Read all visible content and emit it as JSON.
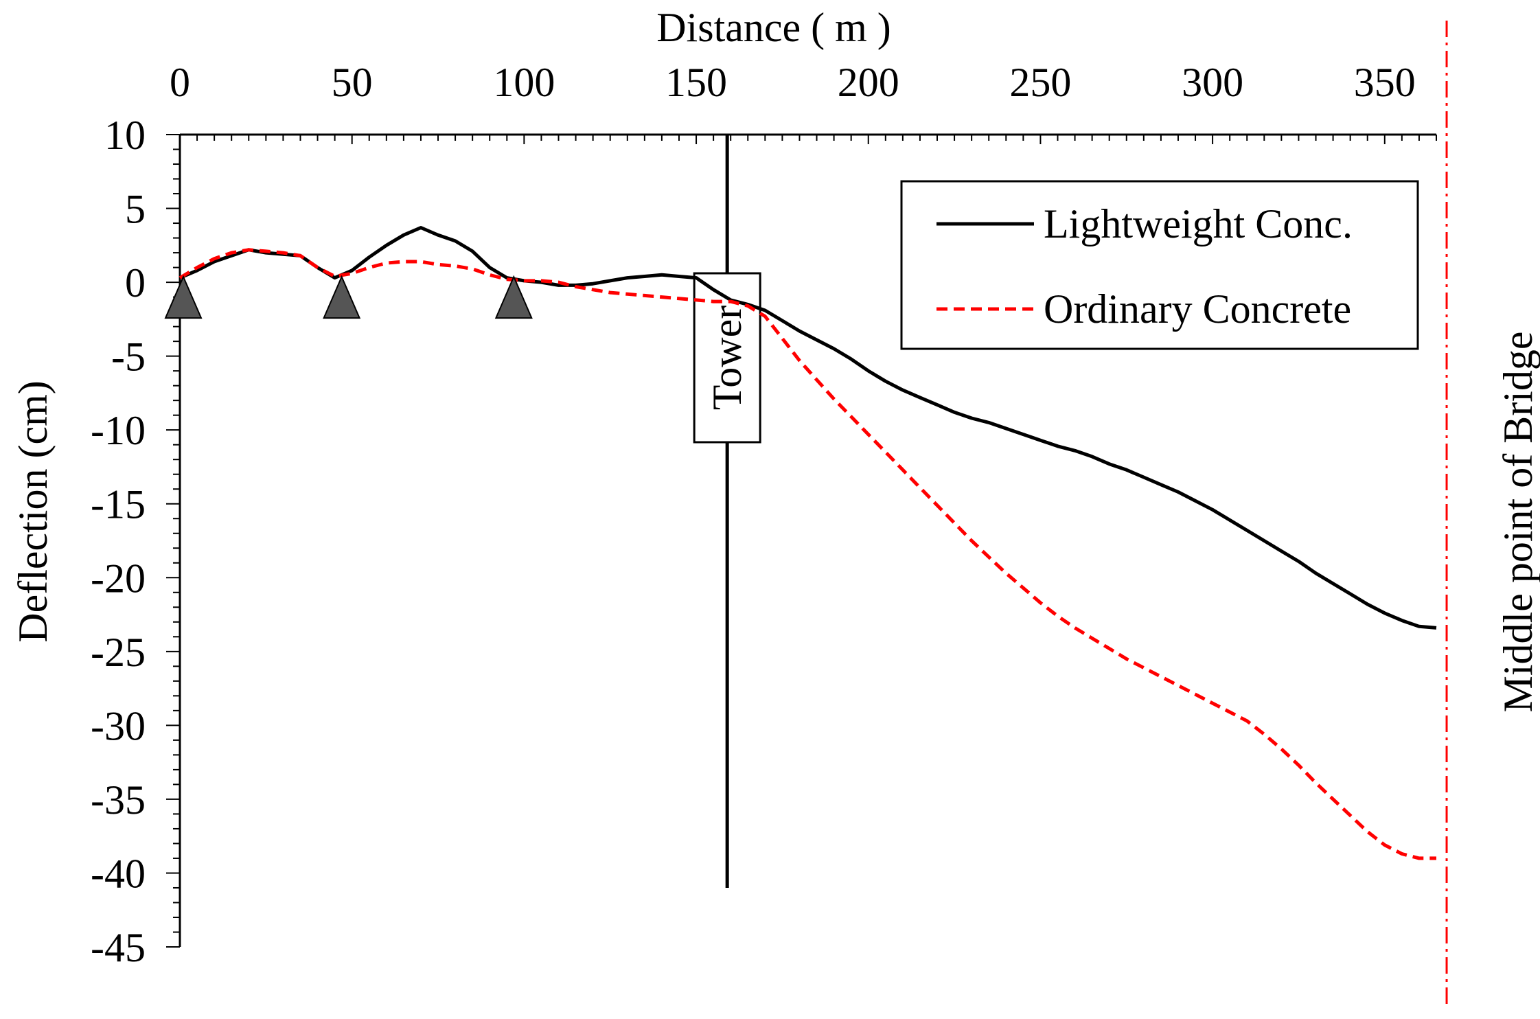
{
  "chart_data": {
    "type": "line",
    "title": "",
    "xlabel": "Distance ( m )",
    "ylabel": "Deflection (cm)",
    "xlim": [
      0,
      365
    ],
    "ylim": [
      -45,
      10
    ],
    "x_ticks": [
      0,
      50,
      100,
      150,
      200,
      250,
      300,
      350
    ],
    "y_ticks": [
      10,
      5,
      0,
      -5,
      -10,
      -15,
      -20,
      -25,
      -30,
      -35,
      -40,
      -45
    ],
    "legend": {
      "position": "top-right"
    },
    "annotations": {
      "tower_label": "Tower",
      "tower_x": 159,
      "tower_bottom_y": -41,
      "midpoint_label": "Middle point of Bridge",
      "midpoint_x": 368,
      "supports_x": [
        1,
        47,
        97
      ]
    },
    "series": [
      {
        "name": "Lightweight Conc.",
        "color": "#000000",
        "style": "solid",
        "x": [
          0,
          5,
          10,
          15,
          20,
          25,
          30,
          35,
          40,
          45,
          50,
          55,
          60,
          65,
          70,
          75,
          80,
          85,
          90,
          95,
          100,
          105,
          110,
          115,
          120,
          125,
          130,
          135,
          140,
          145,
          150,
          155,
          160,
          165,
          170,
          175,
          180,
          185,
          190,
          195,
          200,
          205,
          210,
          215,
          220,
          225,
          230,
          235,
          240,
          245,
          250,
          255,
          260,
          265,
          270,
          275,
          280,
          285,
          290,
          295,
          300,
          305,
          310,
          315,
          320,
          325,
          330,
          335,
          340,
          345,
          350,
          355,
          360,
          365
        ],
        "values": [
          0.3,
          0.8,
          1.4,
          1.8,
          2.2,
          2.0,
          1.9,
          1.8,
          1.0,
          0.3,
          0.8,
          1.7,
          2.5,
          3.2,
          3.7,
          3.2,
          2.8,
          2.1,
          1.0,
          0.3,
          0.1,
          0.0,
          -0.2,
          -0.2,
          -0.1,
          0.1,
          0.3,
          0.4,
          0.5,
          0.4,
          0.3,
          -0.5,
          -1.2,
          -1.5,
          -1.9,
          -2.6,
          -3.3,
          -3.9,
          -4.5,
          -5.2,
          -6.0,
          -6.7,
          -7.3,
          -7.8,
          -8.3,
          -8.8,
          -9.2,
          -9.5,
          -9.9,
          -10.3,
          -10.7,
          -11.1,
          -11.4,
          -11.8,
          -12.3,
          -12.7,
          -13.2,
          -13.7,
          -14.2,
          -14.8,
          -15.4,
          -16.1,
          -16.8,
          -17.5,
          -18.2,
          -18.9,
          -19.7,
          -20.4,
          -21.1,
          -21.8,
          -22.4,
          -22.9,
          -23.3,
          -23.4
        ]
      },
      {
        "name": "Ordinary Concrete",
        "color": "#ff0000",
        "style": "dashed",
        "x": [
          0,
          5,
          10,
          15,
          20,
          25,
          30,
          35,
          40,
          45,
          50,
          55,
          60,
          65,
          70,
          75,
          80,
          85,
          90,
          95,
          100,
          105,
          110,
          115,
          120,
          125,
          130,
          135,
          140,
          145,
          150,
          155,
          160,
          165,
          170,
          175,
          180,
          185,
          190,
          195,
          200,
          205,
          210,
          215,
          220,
          225,
          230,
          235,
          240,
          245,
          250,
          255,
          260,
          265,
          270,
          275,
          280,
          285,
          290,
          295,
          300,
          305,
          310,
          315,
          320,
          325,
          330,
          335,
          340,
          345,
          350,
          355,
          360,
          365
        ],
        "values": [
          0.3,
          1.0,
          1.6,
          2.0,
          2.2,
          2.1,
          2.0,
          1.8,
          1.0,
          0.4,
          0.6,
          1.0,
          1.3,
          1.4,
          1.4,
          1.2,
          1.1,
          0.9,
          0.5,
          0.2,
          0.1,
          0.1,
          0.0,
          -0.3,
          -0.5,
          -0.7,
          -0.8,
          -0.9,
          -1.0,
          -1.1,
          -1.2,
          -1.3,
          -1.3,
          -1.6,
          -2.3,
          -3.8,
          -5.3,
          -6.6,
          -7.9,
          -9.1,
          -10.3,
          -11.5,
          -12.7,
          -13.9,
          -15.1,
          -16.3,
          -17.5,
          -18.6,
          -19.7,
          -20.7,
          -21.7,
          -22.6,
          -23.4,
          -24.1,
          -24.8,
          -25.5,
          -26.1,
          -26.7,
          -27.3,
          -27.9,
          -28.5,
          -29.1,
          -29.7,
          -30.6,
          -31.6,
          -32.7,
          -33.9,
          -35.0,
          -36.1,
          -37.2,
          -38.1,
          -38.7,
          -39.0,
          -39.0
        ]
      }
    ]
  }
}
